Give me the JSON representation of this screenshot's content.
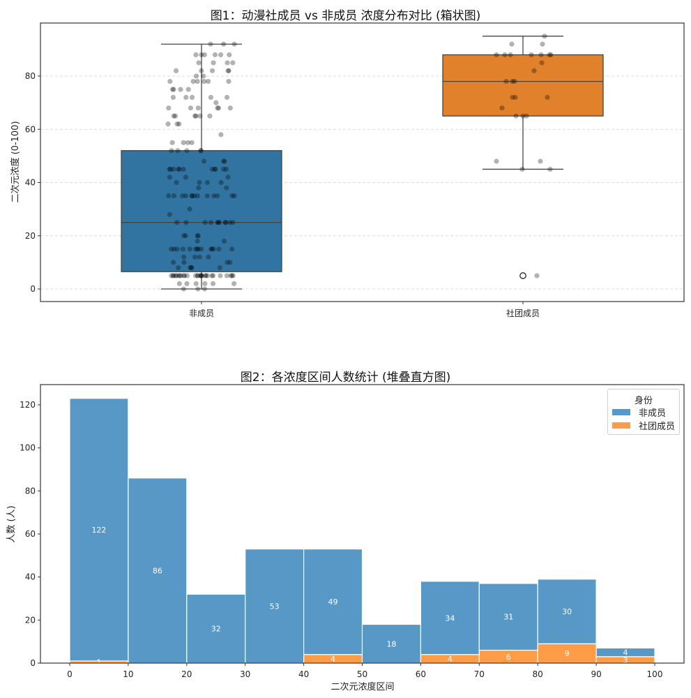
{
  "chart_data": [
    {
      "type": "box",
      "title": "图1：动漫社成员 vs 非成员 浓度分布对比 (箱状图)",
      "xlabel": "",
      "ylabel": "二次元浓度 (0-100)",
      "categories": [
        "非成员",
        "社团成员"
      ],
      "ylim": [
        -5,
        100
      ],
      "yticks": [
        0,
        20,
        40,
        60,
        80
      ],
      "grid": "y-dashed",
      "boxes": [
        {
          "name": "非成员",
          "color": "#3274a1",
          "whisker_low": 0,
          "q1": 6.5,
          "median": 25,
          "q3": 52,
          "whisker_high": 92,
          "outliers": []
        },
        {
          "name": "社团成员",
          "color": "#e1812c",
          "whisker_low": 45,
          "q1": 65,
          "median": 78,
          "q3": 88,
          "whisker_high": 95,
          "outliers": [
            5
          ]
        }
      ],
      "overlay": "strip plot of individual points (black, alpha)"
    },
    {
      "type": "bar",
      "subtype": "stacked-histogram",
      "title": "图2：各浓度区间人数统计 (堆叠直方图)",
      "xlabel": "二次元浓度区间",
      "ylabel": "人数 (人)",
      "bins": [
        0,
        10,
        20,
        30,
        40,
        50,
        60,
        70,
        80,
        90,
        100
      ],
      "categories": [
        "0-10",
        "10-20",
        "20-30",
        "30-40",
        "40-50",
        "50-60",
        "60-70",
        "70-80",
        "80-90",
        "90-100"
      ],
      "series": [
        {
          "name": "社团成员",
          "color": "#ff9c48",
          "values": [
            1,
            0,
            0,
            0,
            4,
            0,
            4,
            6,
            9,
            3
          ]
        },
        {
          "name": "非成员",
          "color": "#5798c6",
          "values": [
            122,
            86,
            32,
            53,
            49,
            18,
            34,
            31,
            30,
            4
          ]
        }
      ],
      "xticks": [
        0,
        10,
        20,
        30,
        40,
        50,
        60,
        70,
        80,
        90,
        100
      ],
      "yticks": [
        0,
        20,
        40,
        60,
        80,
        100,
        120
      ],
      "xlim": [
        -5,
        105
      ],
      "ylim": [
        0,
        129
      ],
      "legend": {
        "title": "身份",
        "position": "upper right",
        "entries": [
          "非成员",
          "社团成员"
        ]
      }
    }
  ],
  "figure1": {
    "title": "图1：动漫社成员 vs 非成员 浓度分布对比 (箱状图)",
    "ylabel": "二次元浓度 (0-100)",
    "yticks": [
      "0",
      "20",
      "40",
      "60",
      "80"
    ],
    "xticks": [
      "非成员",
      "社团成员"
    ]
  },
  "figure2": {
    "title": "图2：各浓度区间人数统计 (堆叠直方图)",
    "ylabel": "人数 (人)",
    "xlabel": "二次元浓度区间",
    "yticks": [
      "0",
      "20",
      "40",
      "60",
      "80",
      "100",
      "120"
    ],
    "xticks": [
      "0",
      "10",
      "20",
      "30",
      "40",
      "50",
      "60",
      "70",
      "80",
      "90",
      "100"
    ],
    "legend": {
      "title": "身份",
      "items": [
        {
          "label": "非成员",
          "color": "#5798c6"
        },
        {
          "label": "社团成员",
          "color": "#ff9c48"
        }
      ]
    }
  }
}
